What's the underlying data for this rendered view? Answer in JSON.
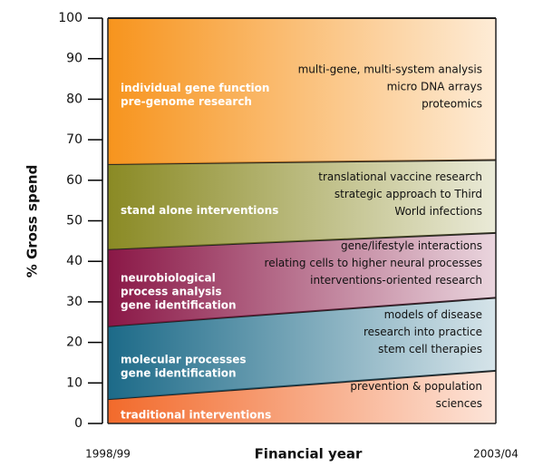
{
  "chart_data": {
    "type": "stacked_area",
    "xlabel": "Financial year",
    "ylabel": "% Gross spend",
    "categories": [
      "1998/99",
      "2003/04"
    ],
    "ylim": [
      0,
      100
    ],
    "yticks": [
      0,
      10,
      20,
      30,
      40,
      50,
      60,
      70,
      80,
      90,
      100
    ],
    "series": [
      {
        "name": "traditional interventions",
        "color": "#f26a2b",
        "values": [
          6,
          13
        ],
        "notes": [
          "prevention & population",
          "sciences"
        ]
      },
      {
        "name": "molecular processes\ngene identification",
        "color": "#1c6a88",
        "values": [
          18,
          18
        ],
        "notes": [
          "models of disease",
          "research into practice",
          "stem cell therapies"
        ]
      },
      {
        "name": "neurobiological\nprocess analysis\ngene identification",
        "color": "#8a1746",
        "values": [
          19,
          16
        ],
        "notes": [
          "gene/lifestyle interactions",
          "relating cells to higher neural processes",
          "interventions-oriented research"
        ]
      },
      {
        "name": "stand alone interventions",
        "color": "#8a8a24",
        "values": [
          21,
          18
        ],
        "notes": [
          "translational vaccine research",
          "strategic approach to Third",
          "World infections"
        ]
      },
      {
        "name": "individual gene function\npre-genome research",
        "color": "#f7941d",
        "values": [
          36,
          35
        ],
        "notes": [
          "multi-gene, multi-system analysis",
          "micro DNA arrays",
          "proteomics"
        ]
      }
    ]
  }
}
